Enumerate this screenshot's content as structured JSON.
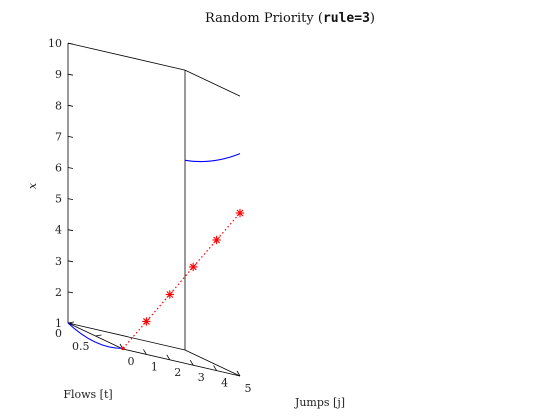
{
  "chart_data": {
    "type": "line",
    "title": {
      "prefix": "Random Priority (",
      "code": "rule=3",
      "suffix": ")"
    },
    "xlabel": "Jumps [j]",
    "ylabel": "Flows [t]",
    "zlabel": "x",
    "xlim": [
      0,
      5
    ],
    "ylim": [
      0,
      1
    ],
    "zlim": [
      1,
      10
    ],
    "x_ticks": [
      "0",
      "1",
      "2",
      "3",
      "4",
      "5"
    ],
    "y_ticks": [
      "0",
      "0.5"
    ],
    "z_ticks": [
      "1",
      "2",
      "3",
      "4",
      "5",
      "6",
      "7",
      "8",
      "9",
      "10"
    ],
    "grid": false,
    "flows": [
      {
        "j": 0,
        "t": [
          0.0,
          0.5,
          1.0
        ],
        "x": [
          1.0,
          0.8,
          1.02
        ]
      },
      {
        "j": 5,
        "t": [
          0.0,
          0.5,
          1.0
        ],
        "x": [
          7.1,
          7.5,
          8.15
        ]
      }
    ],
    "jumps": [
      {
        "j": 0,
        "t": 1.0,
        "x": 1.02
      },
      {
        "j": 1,
        "t": 1.0,
        "x": 2.06
      },
      {
        "j": 2,
        "t": 1.0,
        "x": 3.1
      },
      {
        "j": 3,
        "t": 1.0,
        "x": 4.16
      },
      {
        "j": 4,
        "t": 1.0,
        "x": 5.2
      },
      {
        "j": 5,
        "t": 1.0,
        "x": 6.24
      }
    ],
    "colors": {
      "flow": "#0000ff",
      "jump": "#ff0000",
      "axes": "#000000"
    }
  }
}
